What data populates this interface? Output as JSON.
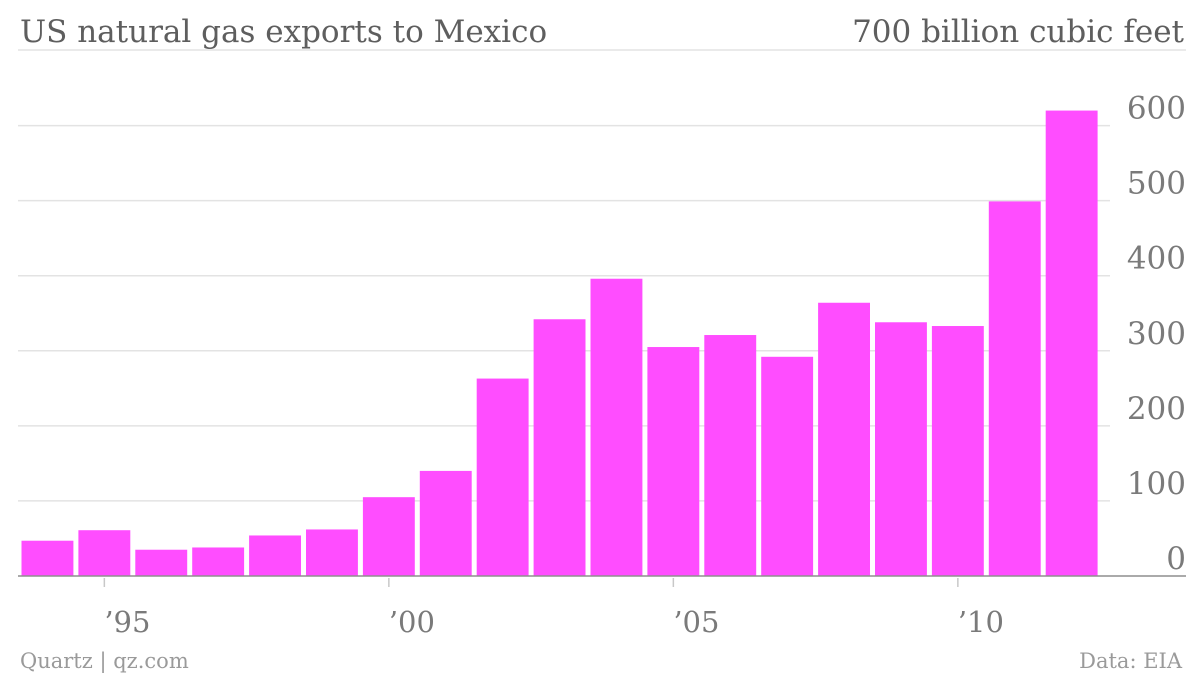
{
  "header": {
    "title": "US natural gas exports to Mexico",
    "unit_label": "700 billion cubic feet"
  },
  "footer": {
    "source_left": "Quartz | qz.com",
    "source_right": "Data: EIA"
  },
  "colors": {
    "bar": "#ff4dff",
    "grid": "#e3e3e3",
    "axis": "#8e8e8e",
    "text": "#7a7a7a"
  },
  "chart_data": {
    "type": "bar",
    "title": "US natural gas exports to Mexico",
    "ylabel": "700 billion cubic feet",
    "xlabel": "",
    "categories": [
      "1994",
      "1995",
      "1996",
      "1997",
      "1998",
      "1999",
      "2000",
      "2001",
      "2002",
      "2003",
      "2004",
      "2005",
      "2006",
      "2007",
      "2008",
      "2009",
      "2010",
      "2011",
      "2012"
    ],
    "values": [
      47,
      61,
      35,
      38,
      54,
      62,
      105,
      140,
      263,
      342,
      396,
      305,
      321,
      292,
      364,
      338,
      333,
      499,
      620
    ],
    "ylim": [
      0,
      700
    ],
    "yticks": [
      0,
      100,
      200,
      300,
      400,
      500,
      600
    ],
    "ytick_labels": [
      "0",
      "100",
      "200",
      "300",
      "400",
      "500",
      "600"
    ],
    "xticks": [
      {
        "year": 1995,
        "label": "’95"
      },
      {
        "year": 2000,
        "label": "’00"
      },
      {
        "year": 2005,
        "label": "’05"
      },
      {
        "year": 2010,
        "label": "’10"
      }
    ],
    "grid": true,
    "y_axis_position": "right"
  }
}
